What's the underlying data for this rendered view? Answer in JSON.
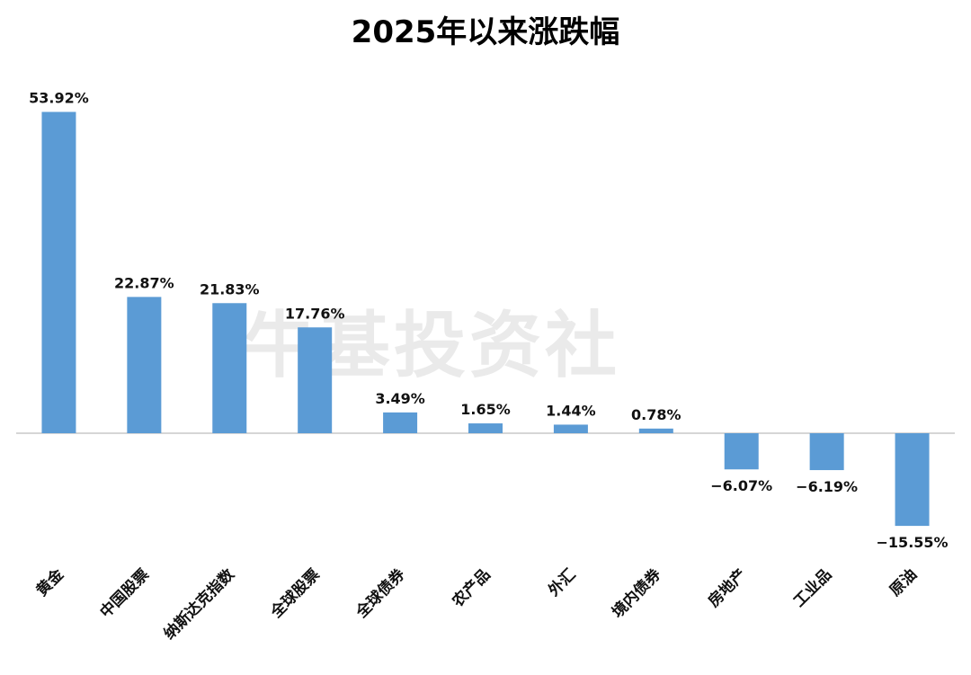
{
  "watermark": "牛基投资社",
  "chart_data": {
    "type": "bar",
    "title": "2025年以来涨跌幅",
    "xlabel": "",
    "ylabel": "",
    "categories": [
      "黄金",
      "中国股票",
      "纳斯达克指数",
      "全球股票",
      "全球债券",
      "农产品",
      "外汇",
      "境内债券",
      "房地产",
      "工业品",
      "原油"
    ],
    "values": [
      53.92,
      22.87,
      21.83,
      17.76,
      3.49,
      1.65,
      1.44,
      0.78,
      -6.07,
      -6.19,
      -15.55
    ],
    "value_labels": [
      "53.92%",
      "22.87%",
      "21.83%",
      "17.76%",
      "3.49%",
      "1.65%",
      "1.44%",
      "0.78%",
      "−6.07%",
      "−6.19%",
      "−15.55%"
    ],
    "ylim": [
      -20,
      60
    ],
    "grid": false,
    "legend": "none",
    "bar_color": "#5b9bd5"
  }
}
